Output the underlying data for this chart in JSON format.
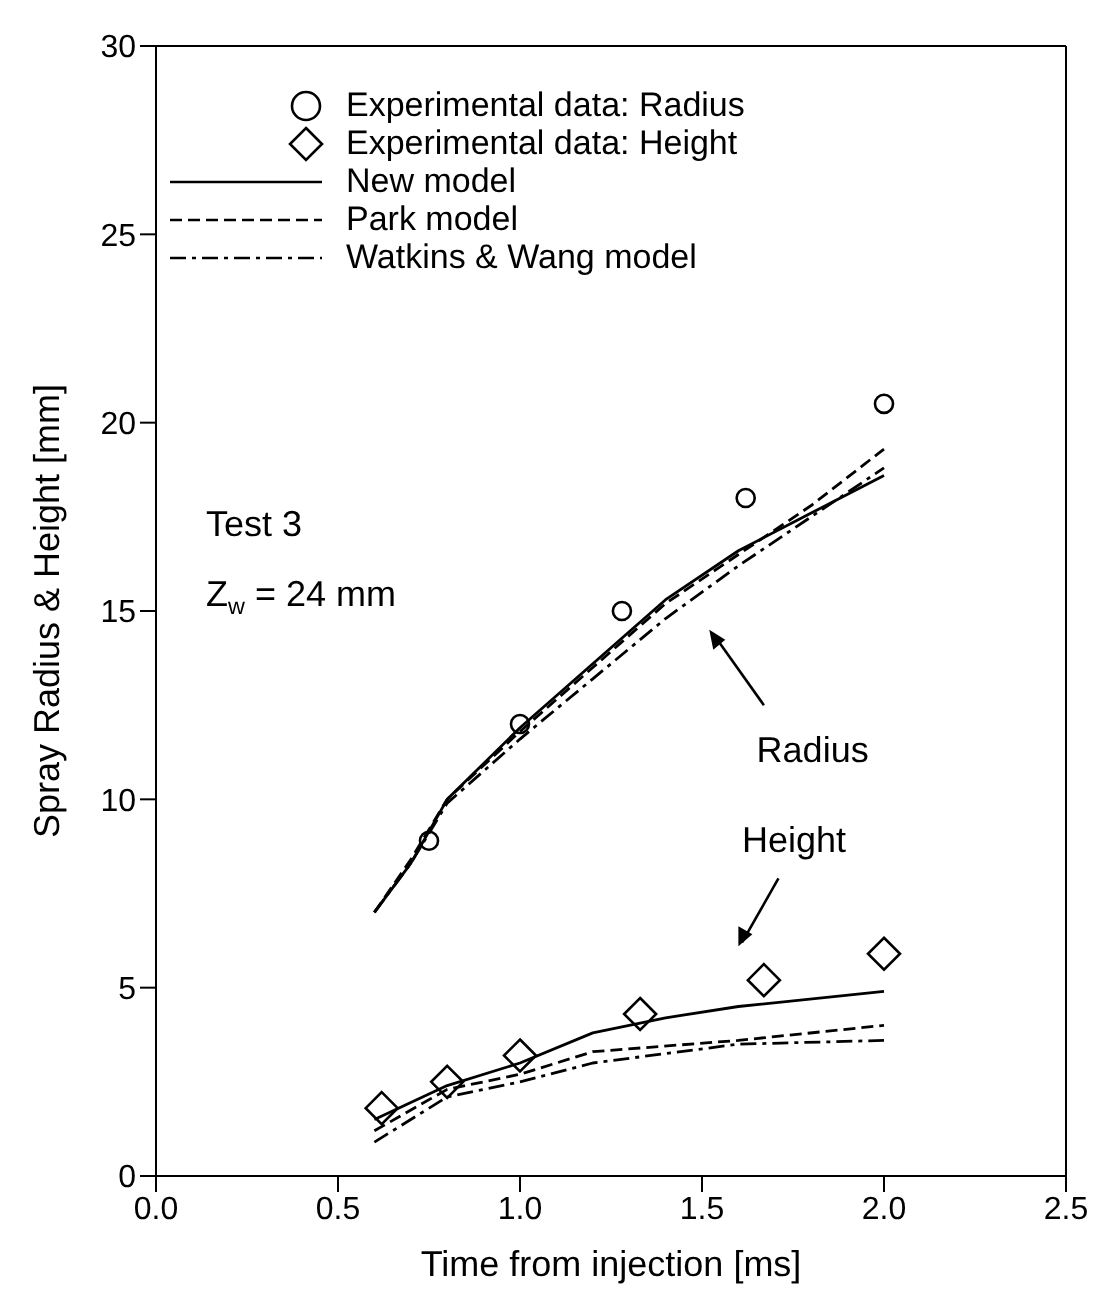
{
  "chart_data": {
    "type": "line",
    "xlabel": "Time from injection [ms]",
    "ylabel": "Spray Radius & Height [mm]",
    "xlim": [
      0,
      2.5
    ],
    "xticks": [
      {
        "value": 0,
        "label": "0.0"
      },
      0.5,
      {
        "value": 1,
        "label": "1.0"
      },
      1.5,
      {
        "value": 2,
        "label": "2.0"
      },
      2.5
    ],
    "ylim": [
      0,
      30
    ],
    "yticks": [
      0,
      5,
      10,
      15,
      20,
      25,
      30
    ],
    "legend": "top left",
    "annotations": [
      "Test 3",
      "Z$_{w}$ = 24 mm",
      "Radius",
      "Height"
    ],
    "series": [
      {
        "name": "Experimental data: Radius",
        "type": "scatter",
        "marker": "circle",
        "color": "#000000",
        "x": [
          0.75,
          1.0,
          1.28,
          1.62,
          2.0
        ],
        "values": [
          8.9,
          12.0,
          15.0,
          18.0,
          20.5
        ]
      },
      {
        "name": "Experimental data: Height",
        "type": "scatter",
        "marker": "diamond",
        "color": "#000000",
        "x": [
          0.62,
          0.8,
          1.0,
          1.33,
          1.67,
          2.0
        ],
        "values": [
          1.8,
          2.5,
          3.2,
          4.3,
          5.2,
          5.9
        ]
      },
      {
        "name": "New model",
        "type": "line",
        "line_style": "solid",
        "color": "#000000",
        "x": [
          0.6,
          0.7,
          0.8,
          1.0,
          1.2,
          1.4,
          1.6,
          1.8,
          2.0
        ],
        "values": [
          7.0,
          8.3,
          10.0,
          11.9,
          13.6,
          15.3,
          16.6,
          17.6,
          18.6
        ]
      },
      {
        "line_style": "solid",
        "color": "#000000",
        "x": [
          0.6,
          0.8,
          1.0,
          1.2,
          1.4,
          1.6,
          2.0
        ],
        "values": [
          1.5,
          2.4,
          3.0,
          3.8,
          4.2,
          4.5,
          4.9
        ]
      },
      {
        "name": "Park model",
        "type": "line",
        "line_style": "dashed",
        "color": "#000000",
        "x": [
          0.6,
          0.7,
          0.8,
          1.0,
          1.2,
          1.4,
          1.6,
          1.8,
          2.0
        ],
        "values": [
          7.0,
          8.4,
          10.0,
          11.8,
          13.5,
          15.2,
          16.5,
          17.8,
          19.3
        ]
      },
      {
        "line_style": "dashed",
        "color": "#000000",
        "x": [
          0.6,
          0.8,
          1.0,
          1.2,
          1.6,
          2.0
        ],
        "values": [
          1.2,
          2.3,
          2.7,
          3.3,
          3.6,
          4.0
        ]
      },
      {
        "name": "Watkins & Wang model",
        "type": "line",
        "line_style": "dashdot",
        "color": "#000000",
        "x": [
          0.6,
          0.7,
          0.8,
          1.0,
          1.2,
          1.4,
          1.6,
          1.8,
          2.0
        ],
        "values": [
          7.0,
          8.3,
          9.9,
          11.6,
          13.2,
          14.8,
          16.2,
          17.5,
          18.8
        ]
      },
      {
        "line_style": "dashdot",
        "color": "#000000",
        "x": [
          0.6,
          0.8,
          1.0,
          1.2,
          1.6,
          2.0
        ],
        "values": [
          0.9,
          2.1,
          2.5,
          3.0,
          3.5,
          3.6
        ]
      }
    ]
  }
}
